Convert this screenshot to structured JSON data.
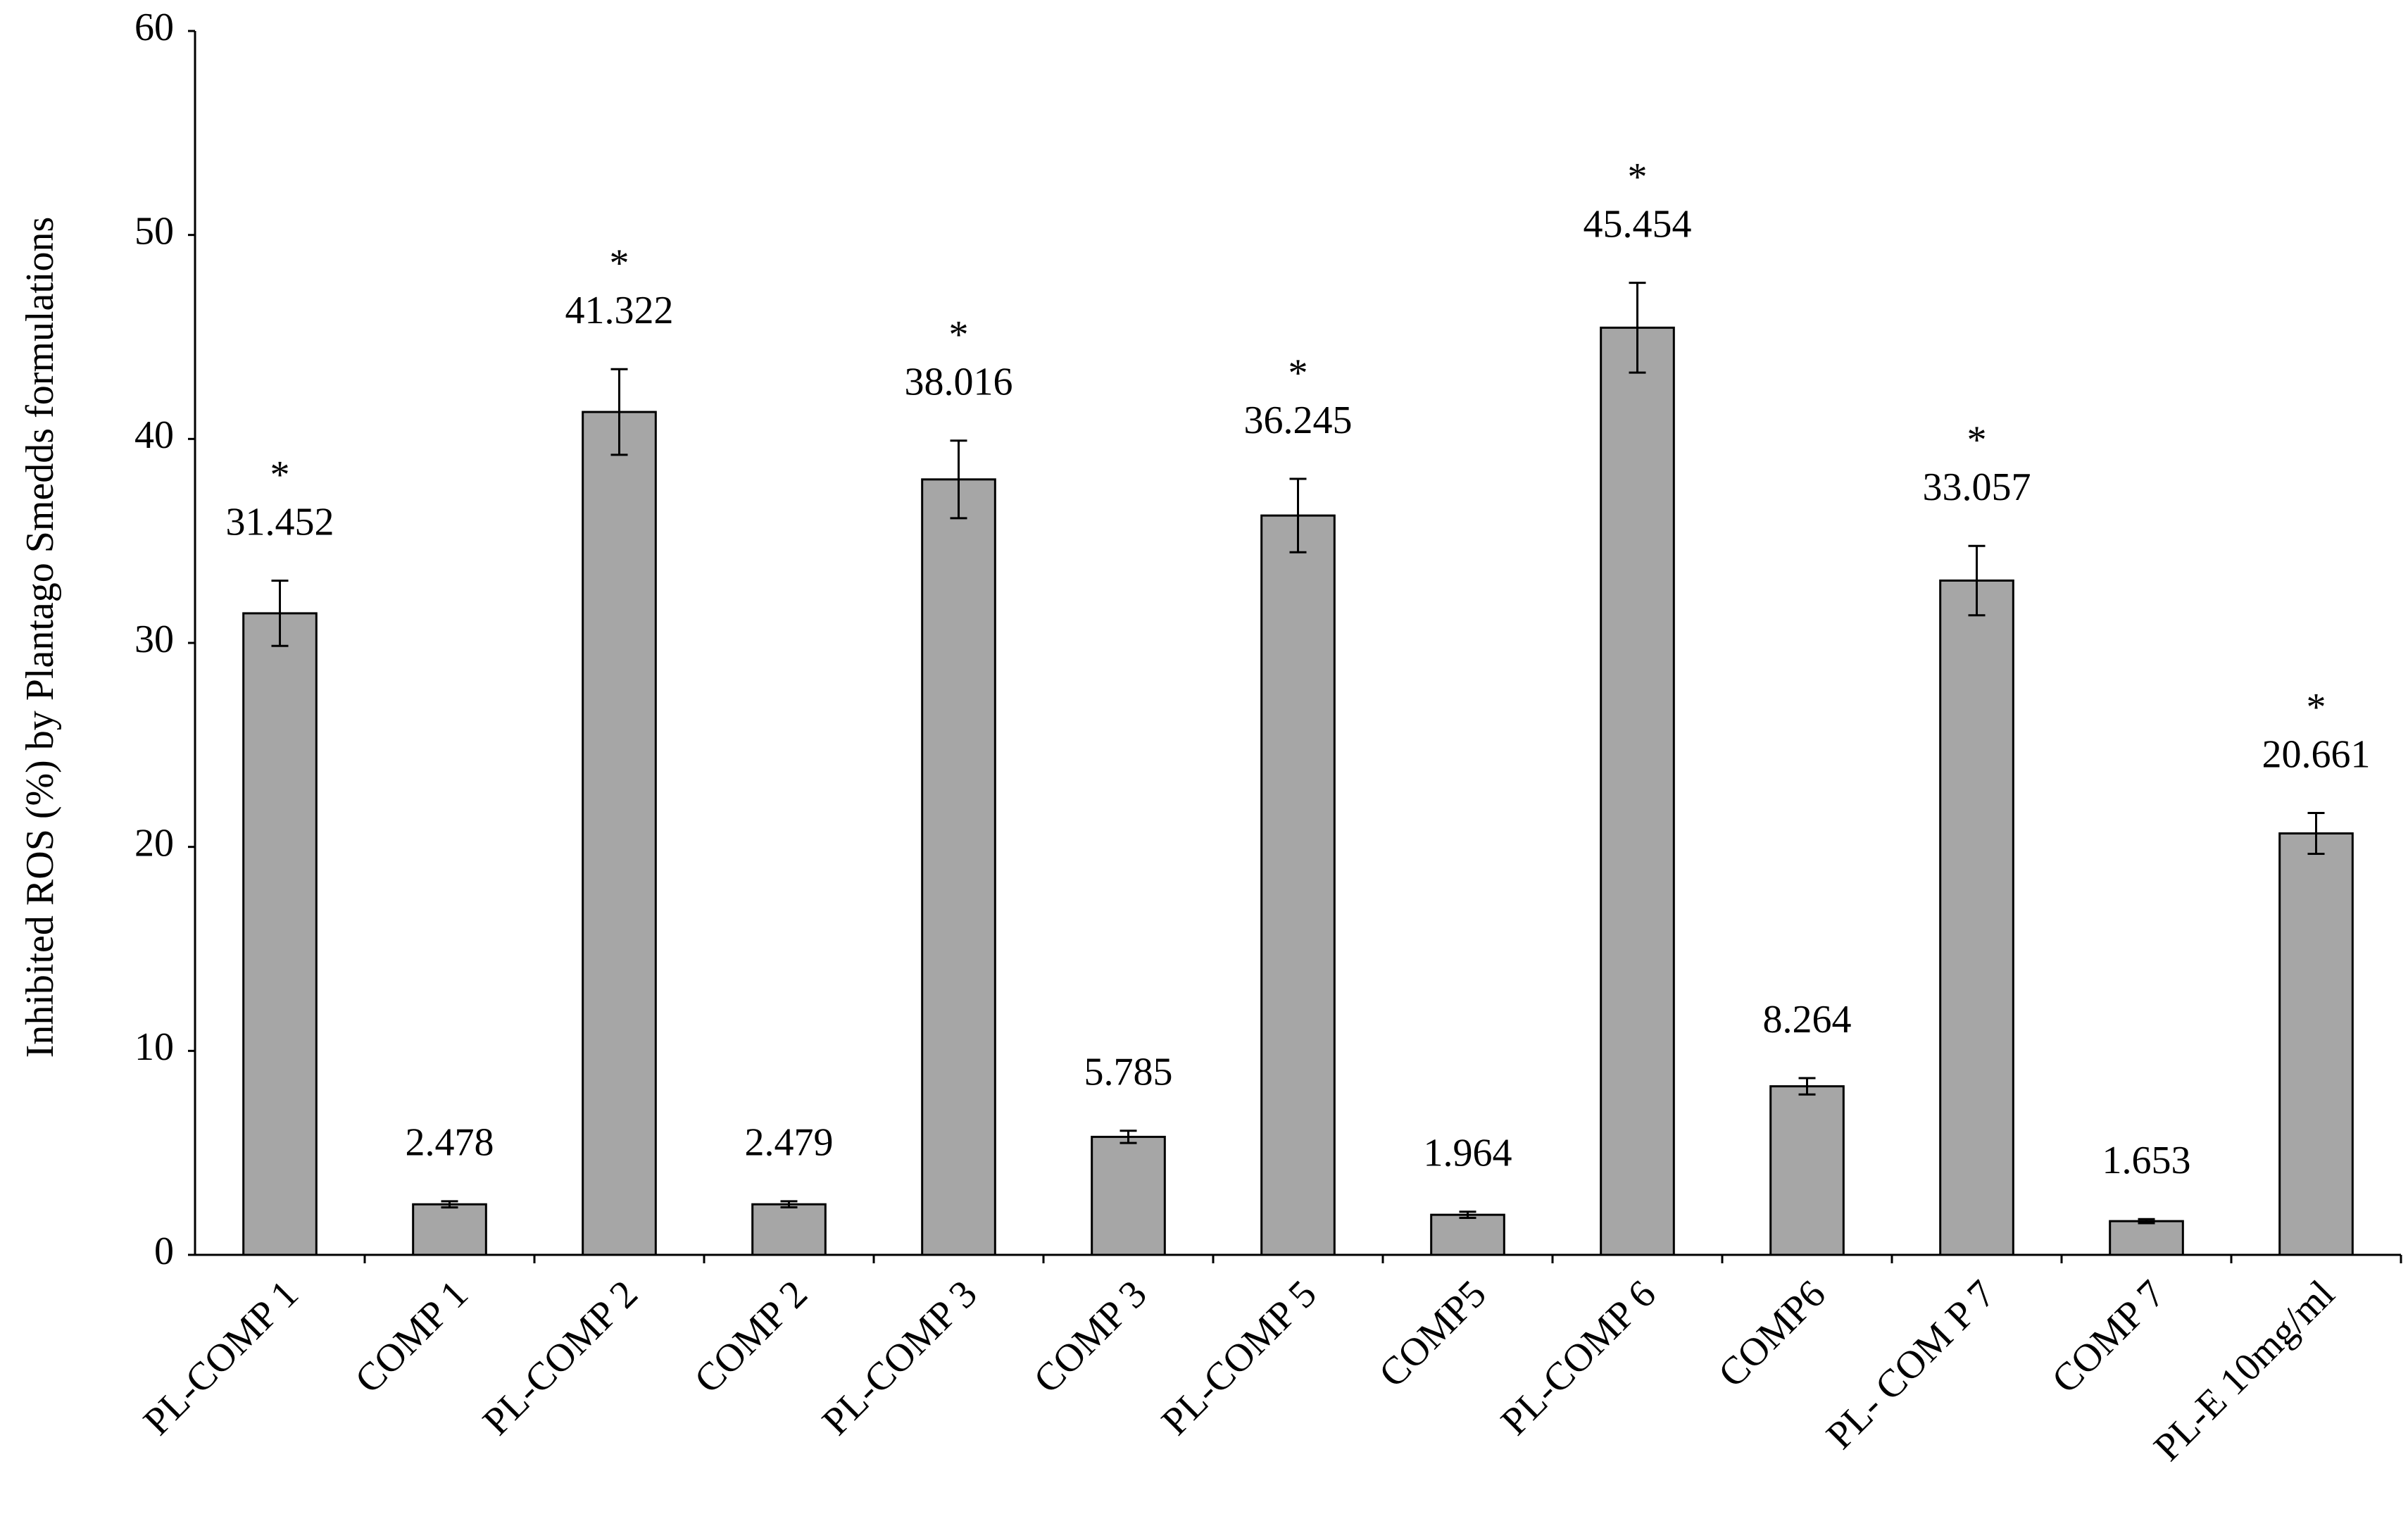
{
  "chart_data": {
    "type": "bar",
    "y_label": "Inhibited ROS (%) by Plantago Smedds formulations",
    "categories": [
      "PL-COMP 1",
      "COMP 1",
      "PL-COMP 2",
      "COMP 2",
      "PL-COMP 3",
      "COMP 3",
      "PL-COMP 5",
      "COMP5",
      "PL-COMP 6",
      "COMP6",
      "PL- COM P 7",
      "COMP 7",
      "PL-E 10mg/ml"
    ],
    "values": [
      31.452,
      2.478,
      41.322,
      2.479,
      38.016,
      5.785,
      36.245,
      1.964,
      45.454,
      8.264,
      33.057,
      1.653,
      20.661
    ],
    "errors": [
      1.6,
      0.15,
      2.1,
      0.15,
      1.9,
      0.3,
      1.8,
      0.15,
      2.2,
      0.4,
      1.7,
      0.1,
      1.0
    ],
    "markers": [
      "*",
      null,
      "*",
      null,
      "*",
      null,
      "*",
      null,
      "*",
      null,
      "*",
      null,
      "*"
    ],
    "color": "#a6a6a6",
    "ylim": [
      0,
      60
    ],
    "yticks": [
      0,
      10,
      20,
      30,
      40,
      50,
      60
    ],
    "grid": false
  }
}
